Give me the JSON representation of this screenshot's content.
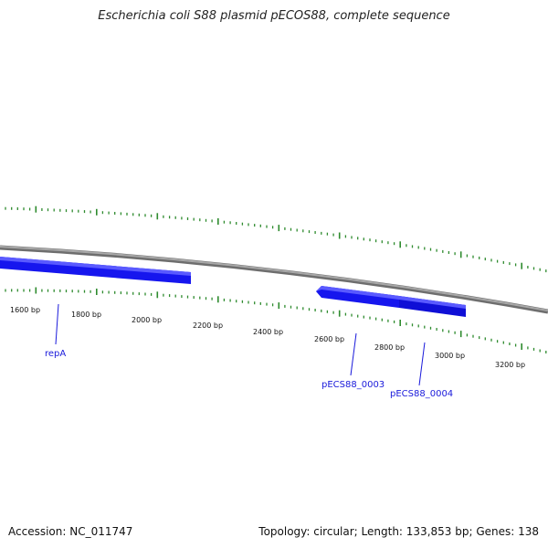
{
  "title": "Escherichia coli S88 plasmid pECOS88, complete sequence",
  "footer": {
    "accession": "Accession: NC_011747",
    "summary": "Topology: circular; Length: 133,853 bp; Genes: 138"
  },
  "scale_labels": [
    "1600 bp",
    "1800 bp",
    "2000 bp",
    "2200 bp",
    "2400 bp",
    "2600 bp",
    "2800 bp",
    "3000 bp",
    "3200 bp"
  ],
  "genes": [
    {
      "name": "repA",
      "strand": "forward"
    },
    {
      "name": "pECS88_0003",
      "strand": "reverse"
    },
    {
      "name": "pECS88_0004",
      "strand": "forward"
    }
  ],
  "colors": {
    "backbone": "#8a8a8a",
    "gene": "#1616ee",
    "tick": "#2e8b2e",
    "gene_label": "#1a1adb"
  }
}
